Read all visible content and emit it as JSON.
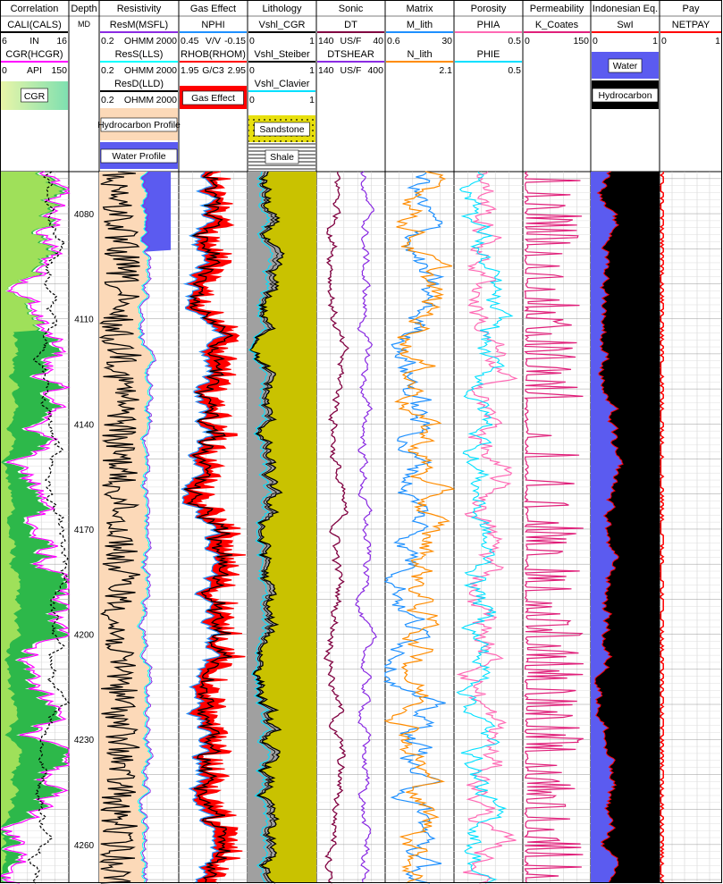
{
  "chart_data": {
    "type": "line",
    "tracks": [
      {
        "title": "Correlation",
        "headers": [
          {
            "name": "CALI(CALS)",
            "scale": [
              "6",
              "IN",
              "16"
            ],
            "color": "#000000"
          },
          {
            "name": "CGR(HCGR)",
            "scale": [
              "0",
              "API",
              "150"
            ],
            "color": "#ff00ff"
          }
        ],
        "legend": [
          {
            "label": "CGR",
            "color": "#c8eec0"
          }
        ]
      },
      {
        "title": "Depth",
        "headers": [
          {
            "name": "MD",
            "scale": [],
            "color": "#000000"
          }
        ],
        "legend": []
      },
      {
        "title": "Resistivity",
        "headers": [
          {
            "name": "ResM(MSFL)",
            "scale": [
              "0.2",
              "OHMM",
              "2000"
            ],
            "color": "#8a2be2"
          },
          {
            "name": "ResS(LLS)",
            "scale": [
              "0.2",
              "OHMM",
              "2000"
            ],
            "color": "#00ffff"
          },
          {
            "name": "ResD(LLD)",
            "scale": [
              "0.2",
              "OHMM",
              "2000"
            ],
            "color": "#000000"
          }
        ],
        "legend": [
          {
            "label": "Hydrocarbon Profile",
            "color": "#fcd9b8"
          },
          {
            "label": "Water Profile",
            "color": "#5b5bf0"
          }
        ]
      },
      {
        "title": "Gas Effect",
        "headers": [
          {
            "name": "NPHI",
            "scale": [
              "0.45",
              "V/V",
              "-0.15"
            ],
            "color": "#1e90ff"
          },
          {
            "name": "RHOB(RHOM)",
            "scale": [
              "1.95",
              "G/C3",
              "2.95"
            ],
            "color": "#ff0000"
          }
        ],
        "legend": [
          {
            "label": "Gas Effect",
            "color": "#ff0000"
          }
        ]
      },
      {
        "title": "Lithology",
        "headers": [
          {
            "name": "Vshl_CGR",
            "scale": [
              "0",
              "",
              "1"
            ],
            "color": "#000000"
          },
          {
            "name": "Vshl_Steiber",
            "scale": [
              "0",
              "",
              "1"
            ],
            "color": "#000000"
          },
          {
            "name": "Vshl_Clavier",
            "scale": [
              "0",
              "",
              "1"
            ],
            "color": "#00e0ff"
          }
        ],
        "legend": [
          {
            "label": "Sandstone",
            "color": "#e6e01a"
          },
          {
            "label": "Shale",
            "color": "#a0a0a0"
          }
        ]
      },
      {
        "title": "Sonic",
        "headers": [
          {
            "name": "DT",
            "scale": [
              "140",
              "US/F",
              "40"
            ],
            "color": "#800040"
          },
          {
            "name": "DTSHEAR",
            "scale": [
              "140",
              "US/F",
              "400"
            ],
            "color": "#8a2be2"
          }
        ],
        "legend": []
      },
      {
        "title": "Matrix",
        "headers": [
          {
            "name": "M_lith",
            "scale": [
              "0.6",
              "",
              "30"
            ],
            "color": "#1e90ff"
          },
          {
            "name": "N_lith",
            "scale": [
              "",
              "",
              "2.1"
            ],
            "color": "#ff8c00"
          }
        ],
        "legend": []
      },
      {
        "title": "Porosity",
        "headers": [
          {
            "name": "PHIA",
            "scale": [
              "",
              "",
              "0.5"
            ],
            "color": "#ff69b4"
          },
          {
            "name": "PHIE",
            "scale": [
              "",
              "",
              "0.5"
            ],
            "color": "#00e0ff"
          }
        ],
        "legend": []
      },
      {
        "title": "Permeability",
        "headers": [
          {
            "name": "K_Coates",
            "scale": [
              "0",
              "",
              "150"
            ],
            "color": "#e0207a"
          }
        ],
        "legend": []
      },
      {
        "title": "Indonesian Eq.",
        "headers": [
          {
            "name": "SwI",
            "scale": [
              "0",
              "",
              "1"
            ],
            "color": "#ff0000"
          }
        ],
        "legend": [
          {
            "label": "Water",
            "color": "#5b5bf0"
          },
          {
            "label": "Hydrocarbon",
            "color": "#000000"
          }
        ]
      },
      {
        "title": "Pay",
        "headers": [
          {
            "name": "NETPAY",
            "scale": [
              "0",
              "",
              "1"
            ],
            "color": "#ff0000"
          }
        ],
        "legend": []
      }
    ],
    "depth_ticks": [
      4080,
      4110,
      4140,
      4170,
      4200,
      4230,
      4260
    ],
    "depth_range": [
      4068,
      4271
    ],
    "grid": true,
    "colors": {
      "cgr_fill": "#2db84a",
      "cgr_fill2": "#9fe05a",
      "hc_fill": "#fcd9b8",
      "water_fill": "#5b5bf0",
      "gas_fill": "#ff0000",
      "sand_fill": "#c9c200",
      "shale_fill": "#a0a0a0",
      "sw_water": "#5b5bf0",
      "sw_hc": "#000000",
      "netpay": "#ff0000"
    }
  }
}
